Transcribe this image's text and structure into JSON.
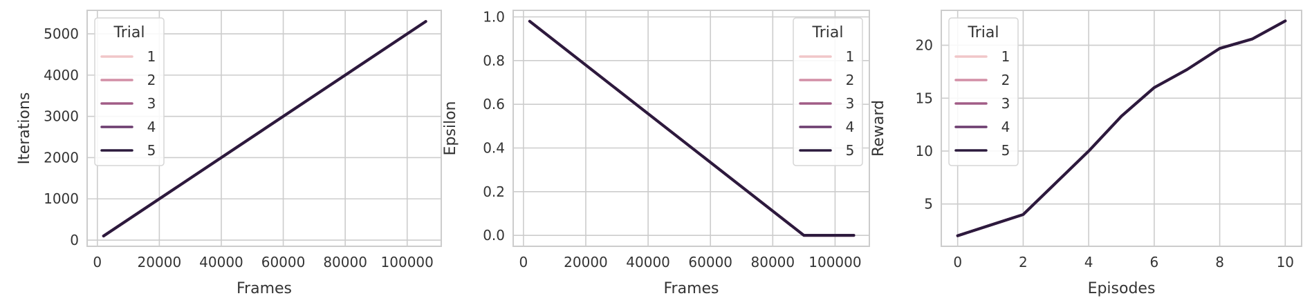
{
  "chart_data": [
    {
      "type": "line",
      "xlabel": "Frames",
      "ylabel": "Iterations",
      "xlim": [
        -3300,
        111000
      ],
      "ylim": [
        -150,
        5570
      ],
      "xticks": [
        0,
        20000,
        40000,
        60000,
        80000,
        100000
      ],
      "yticks": [
        0,
        1000,
        2000,
        3000,
        4000,
        5000
      ],
      "grid": true,
      "legend": {
        "title": "Trial",
        "placement": "top-left",
        "entries": [
          "1",
          "2",
          "3",
          "4",
          "5"
        ]
      },
      "series": [
        {
          "name": "1",
          "x": [
            2000,
            106000
          ],
          "y": [
            100,
            5300
          ]
        },
        {
          "name": "2",
          "x": [
            2000,
            106000
          ],
          "y": [
            100,
            5300
          ]
        },
        {
          "name": "3",
          "x": [
            2000,
            106000
          ],
          "y": [
            100,
            5300
          ]
        },
        {
          "name": "4",
          "x": [
            2000,
            106000
          ],
          "y": [
            100,
            5300
          ]
        },
        {
          "name": "5",
          "x": [
            2000,
            106000
          ],
          "y": [
            100,
            5300
          ]
        }
      ]
    },
    {
      "type": "line",
      "xlabel": "Frames",
      "ylabel": "Epsilon",
      "xlim": [
        -3300,
        111000
      ],
      "ylim": [
        -0.05,
        1.03
      ],
      "xticks": [
        0,
        20000,
        40000,
        60000,
        80000,
        100000
      ],
      "yticks": [
        0.0,
        0.2,
        0.4,
        0.6,
        0.8,
        1.0
      ],
      "grid": true,
      "legend": {
        "title": "Trial",
        "placement": "top-right",
        "entries": [
          "1",
          "2",
          "3",
          "4",
          "5"
        ]
      },
      "series": [
        {
          "name": "1",
          "x": [
            2000,
            90000,
            106000
          ],
          "y": [
            0.98,
            0.0,
            0.0
          ]
        },
        {
          "name": "2",
          "x": [
            2000,
            90000,
            106000
          ],
          "y": [
            0.98,
            0.0,
            0.0
          ]
        },
        {
          "name": "3",
          "x": [
            2000,
            90000,
            106000
          ],
          "y": [
            0.98,
            0.0,
            0.0
          ]
        },
        {
          "name": "4",
          "x": [
            2000,
            90000,
            106000
          ],
          "y": [
            0.98,
            0.0,
            0.0
          ]
        },
        {
          "name": "5",
          "x": [
            2000,
            90000,
            106000
          ],
          "y": [
            0.98,
            0.0,
            0.0
          ]
        }
      ]
    },
    {
      "type": "line",
      "xlabel": "Episodes",
      "ylabel": "Reward",
      "xlim": [
        -0.5,
        10.5
      ],
      "ylim": [
        1.0,
        23.3
      ],
      "xticks": [
        0,
        2,
        4,
        6,
        8,
        10
      ],
      "yticks": [
        5,
        10,
        15,
        20
      ],
      "grid": true,
      "legend": {
        "title": "Trial",
        "placement": "top-left",
        "entries": [
          "1",
          "2",
          "3",
          "4",
          "5"
        ]
      },
      "series": [
        {
          "name": "1",
          "x": [
            0,
            1,
            2,
            3,
            4,
            5,
            6,
            7,
            8,
            9,
            10
          ],
          "y": [
            2.0,
            3.0,
            4.0,
            7.0,
            10.0,
            13.3,
            16.0,
            17.7,
            19.7,
            20.6,
            22.3
          ]
        },
        {
          "name": "2",
          "x": [
            0,
            1,
            2,
            3,
            4,
            5,
            6,
            7,
            8,
            9,
            10
          ],
          "y": [
            2.0,
            3.0,
            4.0,
            7.0,
            10.0,
            13.3,
            16.0,
            17.7,
            19.7,
            20.6,
            22.3
          ]
        },
        {
          "name": "3",
          "x": [
            0,
            1,
            2,
            3,
            4,
            5,
            6,
            7,
            8,
            9,
            10
          ],
          "y": [
            2.0,
            3.0,
            4.0,
            7.0,
            10.0,
            13.3,
            16.0,
            17.7,
            19.7,
            20.6,
            22.3
          ]
        },
        {
          "name": "4",
          "x": [
            0,
            1,
            2,
            3,
            4,
            5,
            6,
            7,
            8,
            9,
            10
          ],
          "y": [
            2.0,
            3.0,
            4.0,
            7.0,
            10.0,
            13.3,
            16.0,
            17.7,
            19.7,
            20.6,
            22.3
          ]
        },
        {
          "name": "5",
          "x": [
            0,
            1,
            2,
            3,
            4,
            5,
            6,
            7,
            8,
            9,
            10
          ],
          "y": [
            2.0,
            3.0,
            4.0,
            7.0,
            10.0,
            13.3,
            16.0,
            17.7,
            19.7,
            20.6,
            22.3
          ]
        }
      ]
    }
  ],
  "series_colors": [
    "#f1c6c8",
    "#d28fa6",
    "#a15c86",
    "#6b3c6e",
    "#2c1a3d"
  ]
}
